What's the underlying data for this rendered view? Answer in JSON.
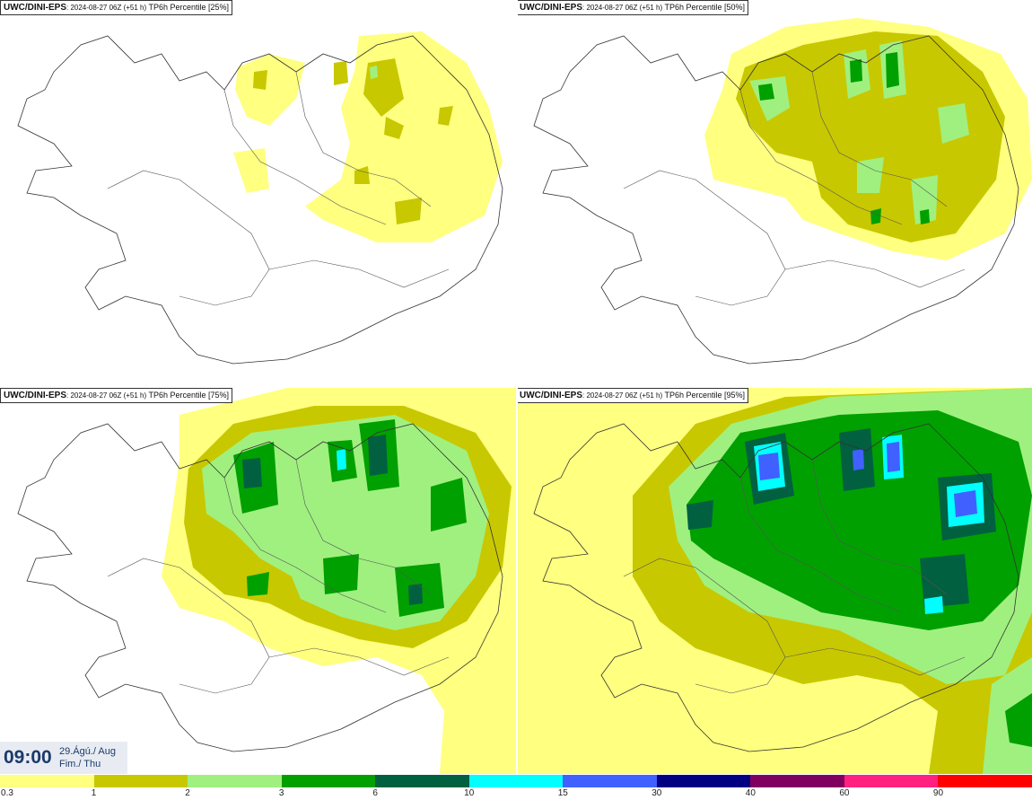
{
  "panels": [
    {
      "source": "UWC/DINI-EPS",
      "run": ": 2024-08-27 06Z (+51 h)",
      "label": " TP6h Percentile [25%]"
    },
    {
      "source": "UWC/DINI-EPS",
      "run": ": 2024-08-27 06Z (+51 h)",
      "label": " TP6h Percentile [50%]"
    },
    {
      "source": "UWC/DINI-EPS",
      "run": ": 2024-08-27 06Z (+51 h)",
      "label": " TP6h Percentile [75%]"
    },
    {
      "source": "UWC/DINI-EPS",
      "run": ": 2024-08-27 06Z (+51 h)",
      "label": " TP6h Percentile [95%]"
    }
  ],
  "valid_time": {
    "time": "09:00",
    "date_line1": "29.Ágú./ Aug",
    "date_line2": "Fim./ Thu"
  },
  "legend": {
    "colors": [
      "#ffff80",
      "#c8c800",
      "#a0f080",
      "#00a000",
      "#006040",
      "#00ffff",
      "#4060ff",
      "#000080",
      "#800060",
      "#ff2080",
      "#ff0000"
    ],
    "ticks": [
      "0.3",
      "1",
      "2",
      "3",
      "6",
      "10",
      "15",
      "30",
      "40",
      "60",
      "90"
    ]
  }
}
